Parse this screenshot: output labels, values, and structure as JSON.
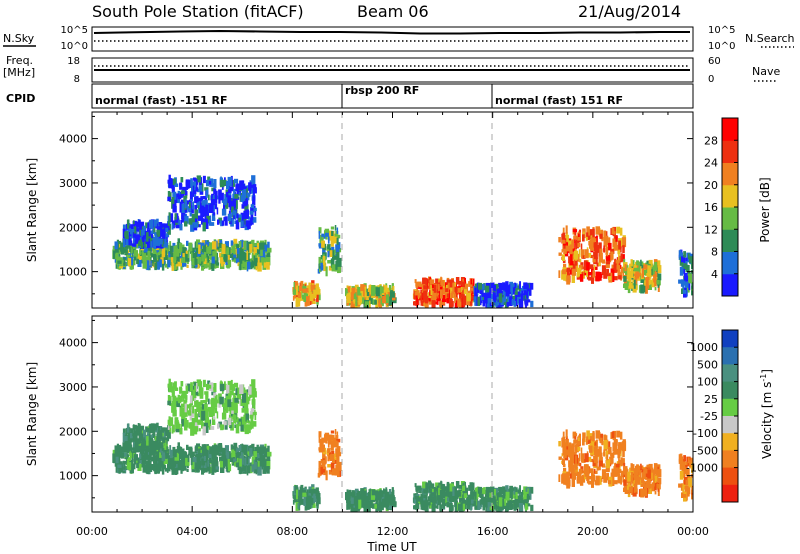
{
  "header": {
    "station": "South Pole Station (fitACF)",
    "beam": "Beam 06",
    "date": "21/Aug/2014"
  },
  "side_labels": {
    "nsky": "N.Sky",
    "nsearch": "N.Search",
    "freq": "Freq.",
    "freq_unit": "[MHz]",
    "nave": "Nave",
    "cpid": "CPID"
  },
  "noise_panel": {
    "left_ticks": [
      "10^5",
      "10^0"
    ],
    "right_ticks": [
      "10^5",
      "10^0"
    ]
  },
  "freq_panel": {
    "left_ticks": [
      "18",
      "8"
    ],
    "right_ticks": [
      "60",
      "0"
    ]
  },
  "cpid_segments": [
    {
      "label": "normal (fast) -151 RF",
      "start_h": 0,
      "end_h": 10
    },
    {
      "label": "rbsp 200 RF",
      "start_h": 10,
      "end_h": 16
    },
    {
      "label": "normal (fast) 151 RF",
      "start_h": 16,
      "end_h": 24
    }
  ],
  "power_colorbar": {
    "label": "Power [dB]",
    "ticks": [
      "4",
      "8",
      "12",
      "16",
      "20",
      "24",
      "28"
    ],
    "colors": [
      "#1a1aff",
      "#1e6fd8",
      "#2e8b57",
      "#66bb44",
      "#e8c020",
      "#f08020",
      "#ee3010",
      "#ff0000"
    ]
  },
  "velocity_colorbar": {
    "label": "Velocity [m s",
    "label_sup": "-1",
    "label_close": "]",
    "ticks": [
      "1000",
      "500",
      "100",
      "25",
      "-25",
      "-100",
      "-500",
      "-1000"
    ],
    "colors": [
      "#1040c0",
      "#2a70b0",
      "#4a9080",
      "#3a8a60",
      "#66cc44",
      "#c8c8c8",
      "#f0b020",
      "#f08020",
      "#ee5010",
      "#ee2010"
    ]
  },
  "chart_data": {
    "type": "heatmap",
    "xlabel": "Time UT",
    "ylabel": "Slant Range [km]",
    "x_ticks": [
      "00:00",
      "04:00",
      "08:00",
      "12:00",
      "16:00",
      "20:00",
      "00:00"
    ],
    "y_ticks": [
      "1000",
      "2000",
      "3000",
      "4000"
    ],
    "xlim_hours": [
      0,
      24
    ],
    "ylim_km": [
      180,
      4600
    ],
    "segment_boundaries_h": [
      10,
      16
    ],
    "echo_regions": [
      {
        "t0": 0.8,
        "t1": 7.0,
        "r0": 1100,
        "r1": 1650,
        "power": 16,
        "velocity": 100
      },
      {
        "t0": 1.2,
        "t1": 3.0,
        "r0": 1600,
        "r1": 2100,
        "power": 8,
        "velocity": 100
      },
      {
        "t0": 3.0,
        "t1": 6.5,
        "r0": 2000,
        "r1": 3100,
        "power": 6,
        "velocity": 25
      },
      {
        "t0": 8.0,
        "t1": 9.0,
        "r0": 300,
        "r1": 700,
        "power": 24,
        "velocity": 100
      },
      {
        "t0": 9.0,
        "t1": 9.8,
        "r0": 1000,
        "r1": 2000,
        "power": 14,
        "velocity": -100
      },
      {
        "t0": 10.1,
        "t1": 12.0,
        "r0": 250,
        "r1": 650,
        "power": 20,
        "velocity": 100
      },
      {
        "t0": 12.8,
        "t1": 15.2,
        "r0": 250,
        "r1": 800,
        "power": 28,
        "velocity": 100
      },
      {
        "t0": 15.2,
        "t1": 17.5,
        "r0": 250,
        "r1": 700,
        "power": 8,
        "velocity": 100
      },
      {
        "t0": 18.6,
        "t1": 21.2,
        "r0": 800,
        "r1": 1950,
        "power": 26,
        "velocity": -100
      },
      {
        "t0": 21.2,
        "t1": 22.6,
        "r0": 600,
        "r1": 1200,
        "power": 18,
        "velocity": -100
      },
      {
        "t0": 23.4,
        "t1": 24.0,
        "r0": 500,
        "r1": 1400,
        "power": 12,
        "velocity": -100
      }
    ]
  }
}
